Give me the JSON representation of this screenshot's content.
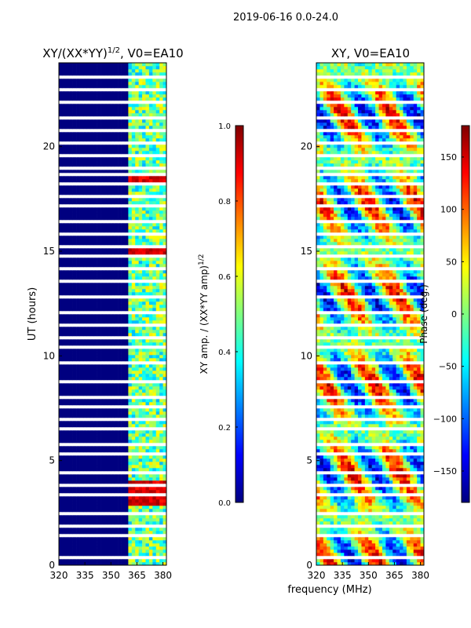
{
  "suptitle": "2019-06-16 0.0-24.0",
  "shared_xlabel": "frequency (MHz)",
  "chart_data": [
    {
      "type": "heatmap",
      "title": "XY/(XX*YY)^{1/2}, V0=EA10",
      "title_main": "XY/(XX*YY)",
      "title_sup": "1/2",
      "title_tail": ", V0=EA10",
      "xlabel": "",
      "ylabel": "UT (hours)",
      "xlim": [
        320,
        382
      ],
      "ylim": [
        0,
        24
      ],
      "xticks": [
        "320",
        "335",
        "350",
        "365",
        "380"
      ],
      "yticks": [
        "0",
        "5",
        "10",
        "15",
        "20"
      ],
      "colorbar": {
        "label": "XY amp. / (XX*YY amp)^{1/2}",
        "label_main": "XY amp. / (XX*YY amp)",
        "label_sup": "1/2",
        "range": [
          0.0,
          1.0
        ],
        "ticks": [
          "0.0",
          "0.2",
          "0.4",
          "0.6",
          "0.8",
          "1.0"
        ],
        "colormap": "jet"
      },
      "description": "Normalized cross-correlation amplitude vs frequency and UT; near 0 below ~360 MHz, structured 0.3-1.0 values between 360 and 382 MHz with peaks near 3.5 h, 15 h and 18.5 h"
    },
    {
      "type": "heatmap",
      "title": "XY, V0=EA10",
      "xlabel": "frequency (MHz)",
      "ylabel": "",
      "xlim": [
        320,
        382
      ],
      "ylim": [
        0,
        24
      ],
      "xticks": [
        "320",
        "335",
        "350",
        "365",
        "380"
      ],
      "yticks": [
        "0",
        "5",
        "10",
        "15",
        "20"
      ],
      "colorbar": {
        "label": "Phase (deg.)",
        "range": [
          -180,
          180
        ],
        "ticks": [
          "−150",
          "−100",
          "−50",
          "0",
          "50",
          "100",
          "150"
        ],
        "colormap": "jet"
      },
      "description": "XY phase vs frequency and UT, spanning -180 to 180 degrees"
    }
  ],
  "colors": {
    "jet_low": "#00007f",
    "jet_high": "#7f0000",
    "gap": "#ffffff",
    "axis": "#000000"
  }
}
